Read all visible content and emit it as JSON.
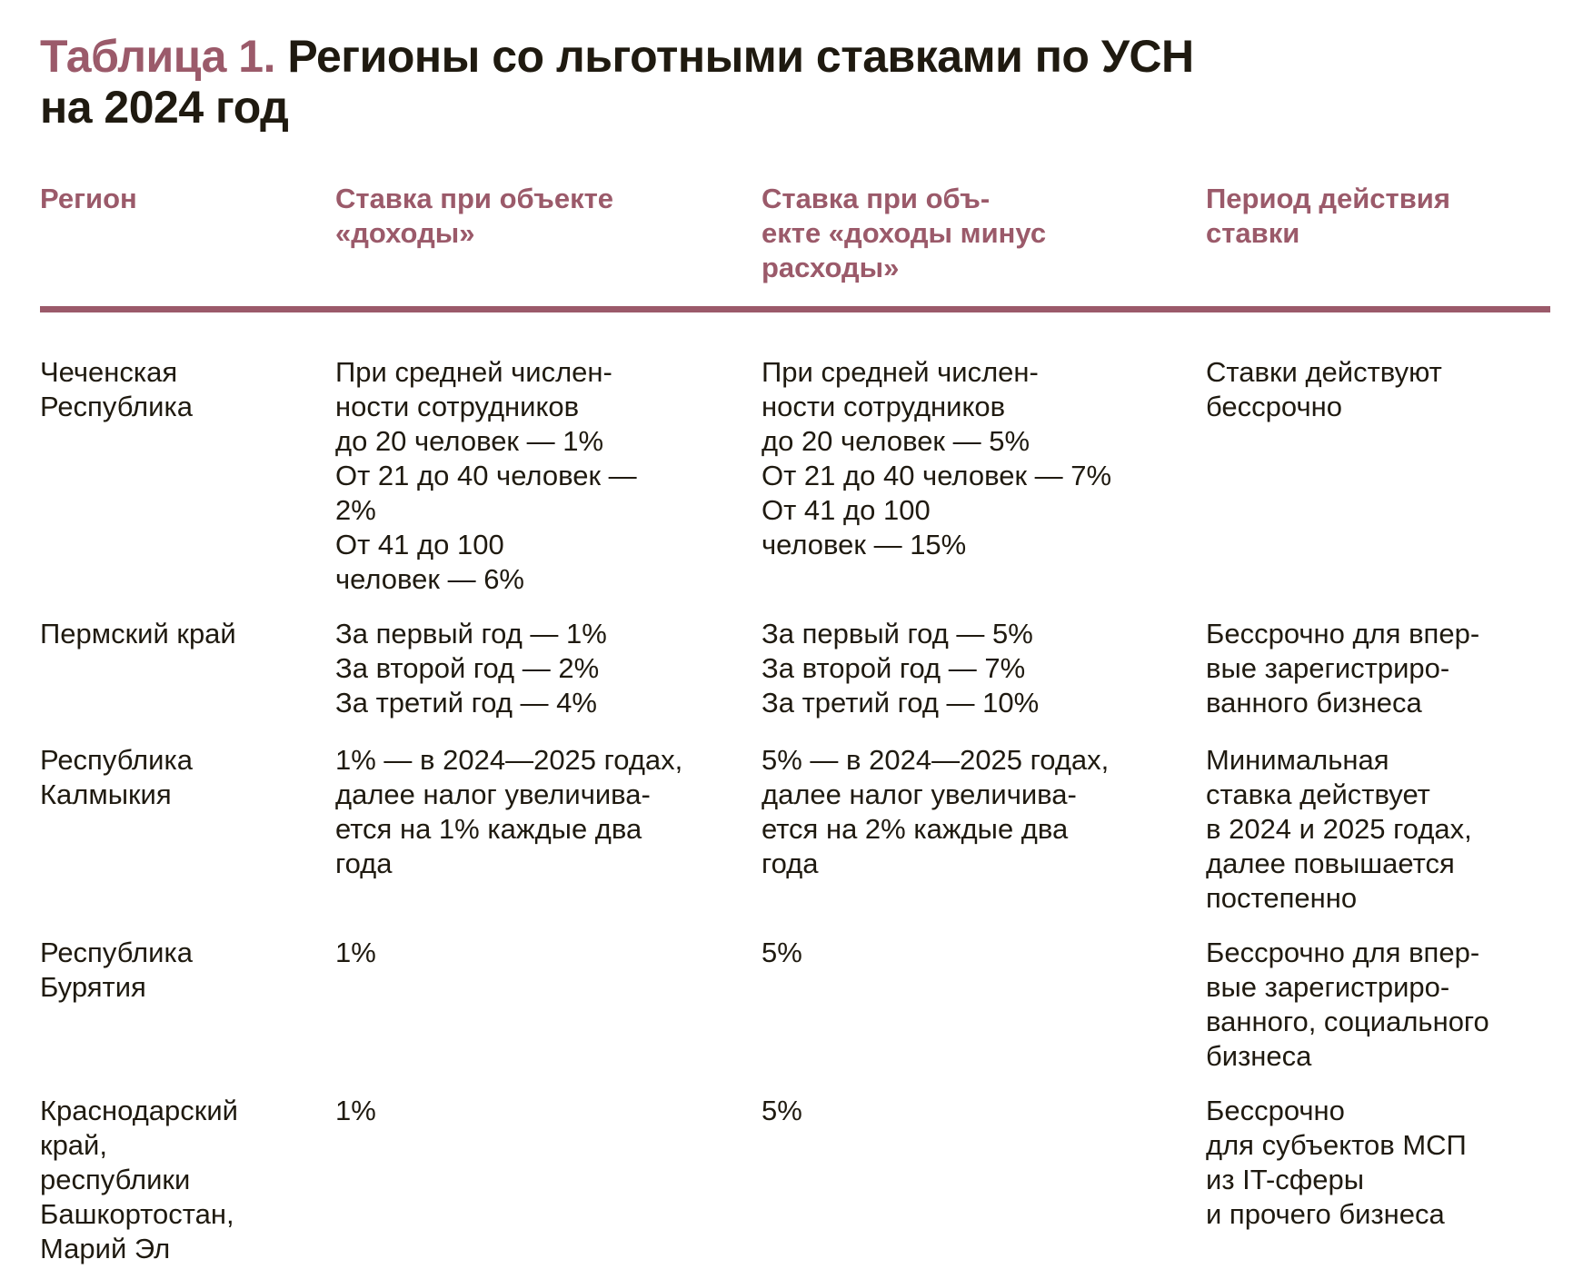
{
  "title": {
    "accent": "Таблица 1.",
    "main": " Регионы со льготными ставками по УСН\nна 2024 год"
  },
  "colors": {
    "accent": "#9b5a6a",
    "text": "#1f1a10"
  },
  "headers": [
    "Регион",
    "Ставка при объекте\n«доходы»",
    "Ставка при объ-\nекте «доходы минус\nрасходы»",
    "Период действия\nставки"
  ],
  "rows": [
    {
      "cells": [
        "Чеченская\nРеспублика",
        "При средней числен-\nности сотрудников\nдо 20 человек — 1%\nОт 21 до 40 человек —\n2%\nОт 41 до 100\nчеловек — 6%",
        "При средней числен-\nности сотрудников\nдо 20 человек — 5%\nОт 21 до 40 человек — 7%\nОт 41 до 100\nчеловек — 15%",
        "Ставки действуют\nбессрочно"
      ]
    },
    {
      "cells": [
        "Пермский край",
        "За первый год — 1%\nЗа второй год — 2%\nЗа третий год — 4%",
        "За первый год — 5%\nЗа второй год — 7%\nЗа третий год — 10%",
        "Бессрочно для впер-\nвые зарегистриро-\nванного бизнеса"
      ]
    },
    {
      "cells": [
        "Республика\nКалмыкия",
        "1% — в 2024—2025 годах,\nдалее налог увеличива-\nется на 1% каждые два\nгода",
        "5% — в 2024—2025 годах,\nдалее налог увеличива-\nется на 2% каждые два\nгода",
        "Минимальная\nставка действует\nв 2024 и 2025 годах,\nдалее повышается\nпостепенно"
      ]
    },
    {
      "cells": [
        "Республика\nБурятия",
        "1%",
        "5%",
        "Бессрочно для впер-\nвые зарегистриро-\nванного, социального\nбизнеса"
      ]
    },
    {
      "cells": [
        "Краснодарский\nкрай,\nреспублики\nБашкортостан,\nМарий Эл",
        "1%",
        "5%",
        "Бессрочно\nдля субъектов МСП\nиз IT-сферы\nи прочего бизнеса"
      ]
    }
  ]
}
